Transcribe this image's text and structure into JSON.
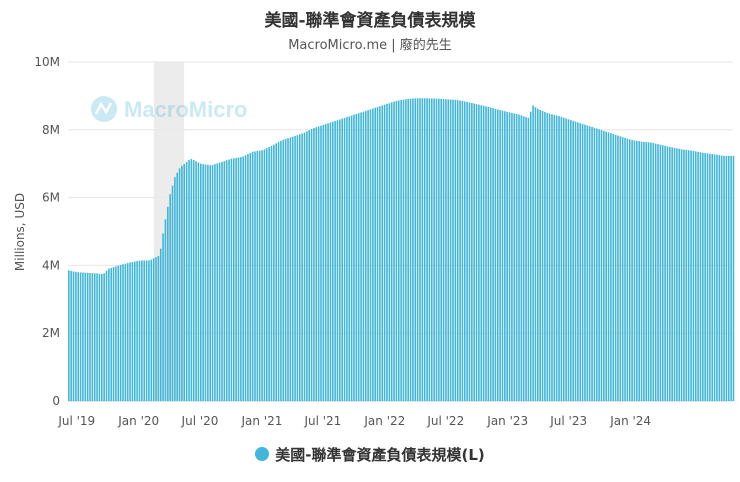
{
  "chart_data": {
    "type": "bar",
    "title": "美國-聯準會資產負債表規模",
    "subtitle": "MacroMicro.me | 廢的先生",
    "watermark": "MacroMicro",
    "ylabel": "Millions, USD",
    "ylim": [
      0,
      10000000
    ],
    "y_ticks": [
      0,
      2000000,
      4000000,
      6000000,
      8000000,
      10000000
    ],
    "y_tick_labels": [
      "0",
      "2M",
      "4M",
      "6M",
      "8M",
      "10M"
    ],
    "x_tick_labels": [
      "Jul '19",
      "Jan '20",
      "Jul '20",
      "Jan '21",
      "Jul '21",
      "Jan '22",
      "Jul '22",
      "Jan '23",
      "Jul '23",
      "Jan '24"
    ],
    "x_range": [
      "2019-06-05",
      "2024-10-31"
    ],
    "x_ticks": [
      "2019-07-01",
      "2020-01-01",
      "2020-07-01",
      "2021-01-01",
      "2021-07-01",
      "2022-01-01",
      "2022-07-01",
      "2023-01-01",
      "2023-07-01",
      "2024-01-01"
    ],
    "shaded_region": [
      "2020-02-15",
      "2020-05-15"
    ],
    "grid": true,
    "legend_position": "bottom",
    "color": "#41b6d8",
    "series": [
      {
        "name": "美國-聯準會資產負債表規模(L)",
        "x": [
          "2019-06-05",
          "2019-07-01",
          "2019-08-01",
          "2019-09-01",
          "2019-09-15",
          "2019-10-01",
          "2019-11-01",
          "2019-12-01",
          "2020-01-01",
          "2020-02-01",
          "2020-03-01",
          "2020-03-15",
          "2020-04-01",
          "2020-04-15",
          "2020-05-01",
          "2020-06-01",
          "2020-07-01",
          "2020-08-01",
          "2020-09-01",
          "2020-10-01",
          "2020-11-01",
          "2020-12-01",
          "2021-01-01",
          "2021-02-01",
          "2021-03-01",
          "2021-04-01",
          "2021-05-01",
          "2021-06-01",
          "2021-07-01",
          "2021-08-01",
          "2021-09-01",
          "2021-10-01",
          "2021-11-01",
          "2021-12-01",
          "2022-01-01",
          "2022-02-01",
          "2022-03-01",
          "2022-04-01",
          "2022-05-01",
          "2022-06-01",
          "2022-07-01",
          "2022-08-01",
          "2022-09-01",
          "2022-10-01",
          "2022-11-01",
          "2022-12-01",
          "2023-01-01",
          "2023-02-01",
          "2023-03-01",
          "2023-03-15",
          "2023-04-01",
          "2023-05-01",
          "2023-06-01",
          "2023-07-01",
          "2023-08-01",
          "2023-09-01",
          "2023-10-01",
          "2023-11-01",
          "2023-12-01",
          "2024-01-01",
          "2024-02-01",
          "2024-03-01",
          "2024-04-01",
          "2024-05-01",
          "2024-06-01",
          "2024-07-01",
          "2024-08-01",
          "2024-09-01",
          "2024-10-01",
          "2024-10-31"
        ],
        "values": [
          3850000,
          3800000,
          3780000,
          3760000,
          3740000,
          3900000,
          4000000,
          4080000,
          4140000,
          4150000,
          4300000,
          5200000,
          6100000,
          6600000,
          6900000,
          7150000,
          7000000,
          6950000,
          7050000,
          7150000,
          7200000,
          7350000,
          7400000,
          7550000,
          7700000,
          7800000,
          7900000,
          8050000,
          8150000,
          8250000,
          8350000,
          8450000,
          8550000,
          8650000,
          8750000,
          8850000,
          8900000,
          8930000,
          8930000,
          8920000,
          8900000,
          8880000,
          8820000,
          8750000,
          8680000,
          8600000,
          8520000,
          8450000,
          8350000,
          8720000,
          8600000,
          8480000,
          8400000,
          8300000,
          8200000,
          8100000,
          8000000,
          7900000,
          7800000,
          7700000,
          7650000,
          7620000,
          7550000,
          7480000,
          7420000,
          7380000,
          7320000,
          7280000,
          7230000,
          7230000
        ]
      }
    ]
  }
}
